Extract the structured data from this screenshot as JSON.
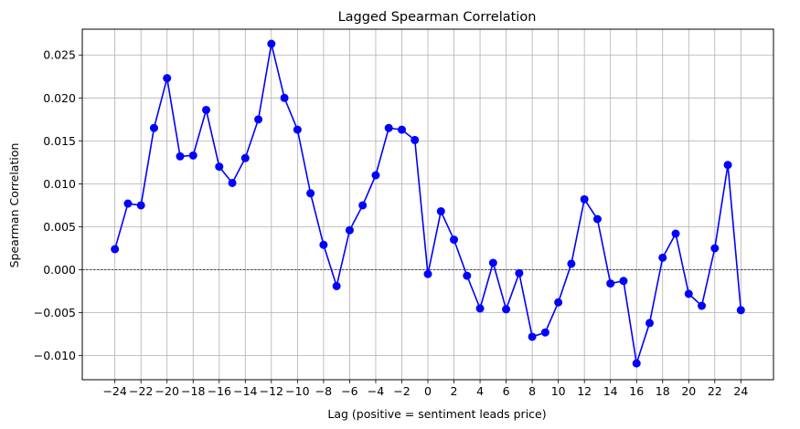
{
  "chart_data": {
    "type": "line",
    "title": "Lagged Spearman Correlation",
    "xlabel": "Lag (positive = sentiment leads price)",
    "ylabel": "Spearman Correlation",
    "xlim": [
      -26.5,
      26.5
    ],
    "ylim": [
      -0.0128,
      0.028
    ],
    "x_ticks": [
      -24,
      -22,
      -20,
      -18,
      -16,
      -14,
      -12,
      -10,
      -8,
      -6,
      -4,
      -2,
      0,
      2,
      4,
      6,
      8,
      10,
      12,
      14,
      16,
      18,
      20,
      22,
      24
    ],
    "y_ticks": [
      -0.01,
      -0.005,
      0.0,
      0.005,
      0.01,
      0.015,
      0.02,
      0.025
    ],
    "y_tick_labels": [
      "−0.010",
      "−0.005",
      "0.000",
      "0.005",
      "0.010",
      "0.015",
      "0.020",
      "0.025"
    ],
    "grid": true,
    "reference_line": {
      "y": 0,
      "style": "dashed",
      "color": "#000000"
    },
    "series": [
      {
        "color": "#0000ff",
        "marker": "circle",
        "x": [
          -24,
          -23,
          -22,
          -21,
          -20,
          -19,
          -18,
          -17,
          -16,
          -15,
          -14,
          -13,
          -12,
          -11,
          -10,
          -9,
          -8,
          -7,
          -6,
          -5,
          -4,
          -3,
          -2,
          -1,
          0,
          1,
          2,
          3,
          4,
          5,
          6,
          7,
          8,
          9,
          10,
          11,
          12,
          13,
          14,
          15,
          16,
          17,
          18,
          19,
          20,
          21,
          22,
          23,
          24
        ],
        "y": [
          0.0024,
          0.0077,
          0.0075,
          0.0165,
          0.0223,
          0.0132,
          0.0133,
          0.0186,
          0.012,
          0.0101,
          0.013,
          0.0175,
          0.0263,
          0.02,
          0.0163,
          0.0089,
          0.0029,
          -0.0019,
          0.0046,
          0.0075,
          0.011,
          0.0165,
          0.0163,
          0.0151,
          -0.0005,
          0.0068,
          0.0035,
          -0.0007,
          -0.0045,
          0.0008,
          -0.0046,
          -0.0004,
          -0.0078,
          -0.0073,
          -0.0038,
          0.0007,
          0.0082,
          0.0059,
          -0.0016,
          -0.0013,
          -0.0109,
          -0.0062,
          0.0014,
          0.0042,
          -0.0028,
          -0.0042,
          0.0025,
          0.0122,
          -0.0047
        ]
      }
    ]
  }
}
